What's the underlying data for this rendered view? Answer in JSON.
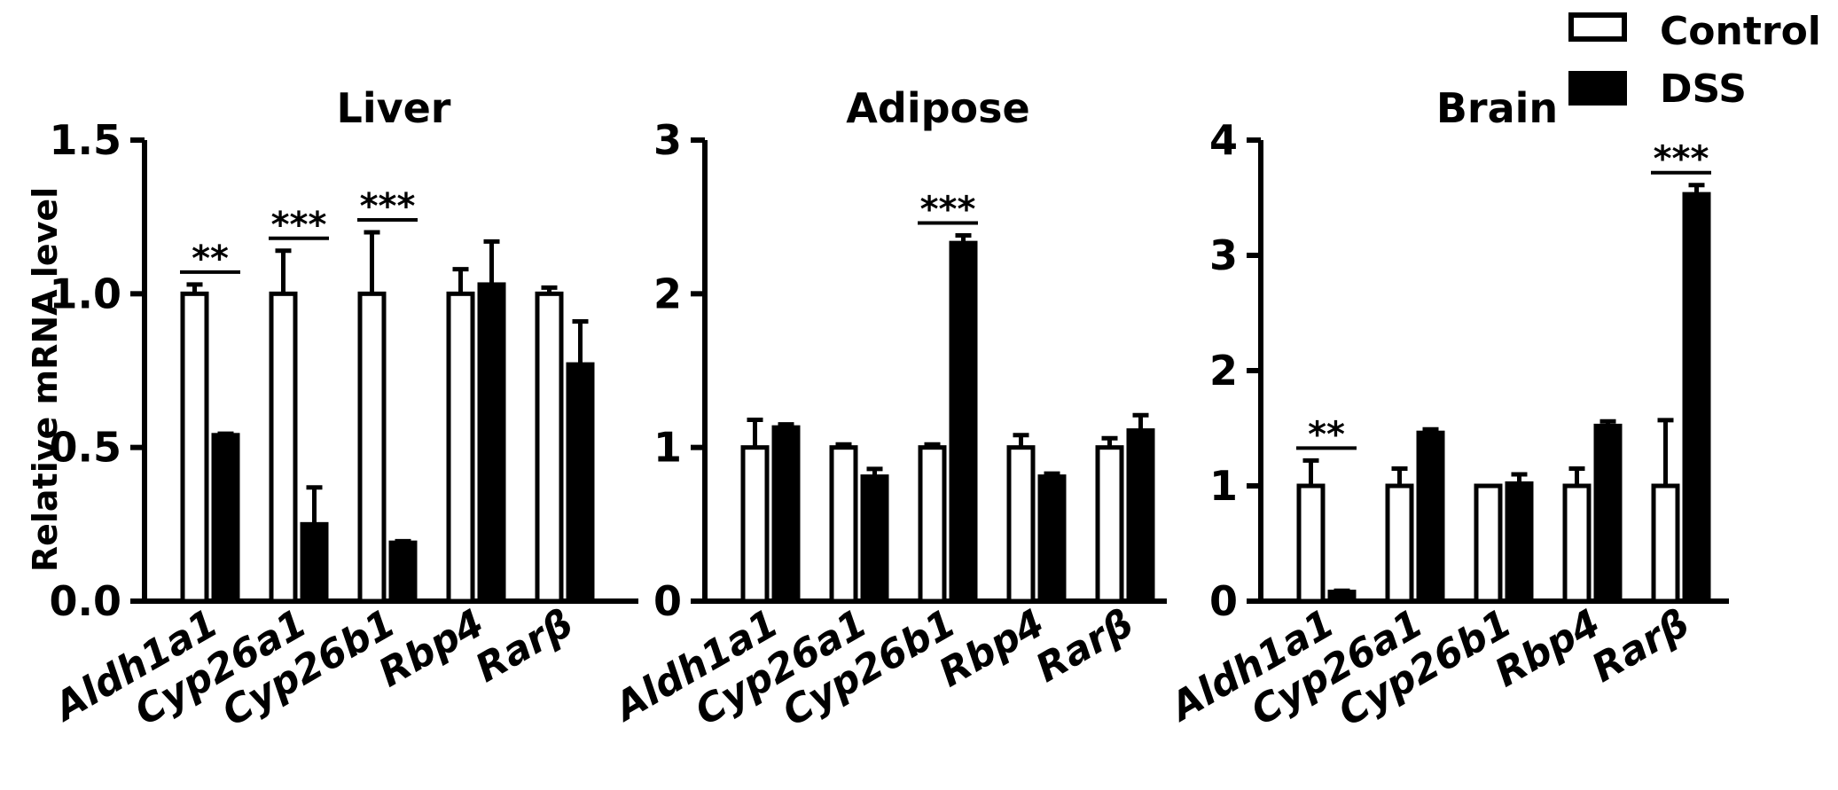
{
  "legend": {
    "control_label": "Control",
    "dss_label": "DSS",
    "colors": {
      "control": "#ffffff",
      "dss": "#000000",
      "stroke": "#000000"
    }
  },
  "chart_data": [
    {
      "type": "bar",
      "title": "Liver",
      "ylabel": "Relative mRNA level",
      "categories": [
        "Aldh1a1",
        "Cyp26a1",
        "Cyp26b1",
        "Rbp4",
        "Rarβ"
      ],
      "ylim": [
        0,
        1.5
      ],
      "yticks": [
        "0.0",
        "0.5",
        "1.0",
        "1.5"
      ],
      "series": [
        {
          "name": "Control",
          "values": [
            1.0,
            1.0,
            1.0,
            1.0,
            1.0
          ],
          "errors": [
            0.03,
            0.14,
            0.2,
            0.08,
            0.02
          ]
        },
        {
          "name": "DSS",
          "values": [
            0.54,
            0.25,
            0.19,
            1.03,
            0.77
          ],
          "errors": [
            0.005,
            0.12,
            0.005,
            0.14,
            0.14
          ]
        }
      ],
      "significance": [
        {
          "category": "Aldh1a1",
          "label": "**"
        },
        {
          "category": "Cyp26a1",
          "label": "***"
        },
        {
          "category": "Cyp26b1",
          "label": "***"
        }
      ]
    },
    {
      "type": "bar",
      "title": "Adipose",
      "ylabel": "",
      "categories": [
        "Aldh1a1",
        "Cyp26a1",
        "Cyp26b1",
        "Rbp4",
        "Rarβ"
      ],
      "ylim": [
        0,
        3
      ],
      "yticks": [
        "0",
        "1",
        "2",
        "3"
      ],
      "series": [
        {
          "name": "Control",
          "values": [
            1.0,
            1.0,
            1.0,
            1.0,
            1.0
          ],
          "errors": [
            0.18,
            0.02,
            0.02,
            0.08,
            0.06
          ]
        },
        {
          "name": "DSS",
          "values": [
            1.13,
            0.81,
            2.33,
            0.81,
            1.11
          ],
          "errors": [
            0.02,
            0.05,
            0.05,
            0.02,
            0.1
          ]
        }
      ],
      "significance": [
        {
          "category": "Cyp26b1",
          "label": "***"
        }
      ]
    },
    {
      "type": "bar",
      "title": "Brain",
      "ylabel": "",
      "categories": [
        "Aldh1a1",
        "Cyp26a1",
        "Cyp26b1",
        "Rbp4",
        "Rarβ"
      ],
      "ylim": [
        0,
        4
      ],
      "yticks": [
        "0",
        "1",
        "2",
        "3",
        "4"
      ],
      "series": [
        {
          "name": "Control",
          "values": [
            1.0,
            1.0,
            1.0,
            1.0,
            1.0
          ],
          "errors": [
            0.22,
            0.15,
            0.0,
            0.15,
            0.57
          ]
        },
        {
          "name": "DSS",
          "values": [
            0.08,
            1.46,
            1.02,
            1.52,
            3.53
          ],
          "errors": [
            0.01,
            0.03,
            0.08,
            0.04,
            0.08
          ]
        }
      ],
      "significance": [
        {
          "category": "Aldh1a1",
          "label": "**"
        },
        {
          "category": "Rarβ",
          "label": "***"
        }
      ]
    }
  ]
}
